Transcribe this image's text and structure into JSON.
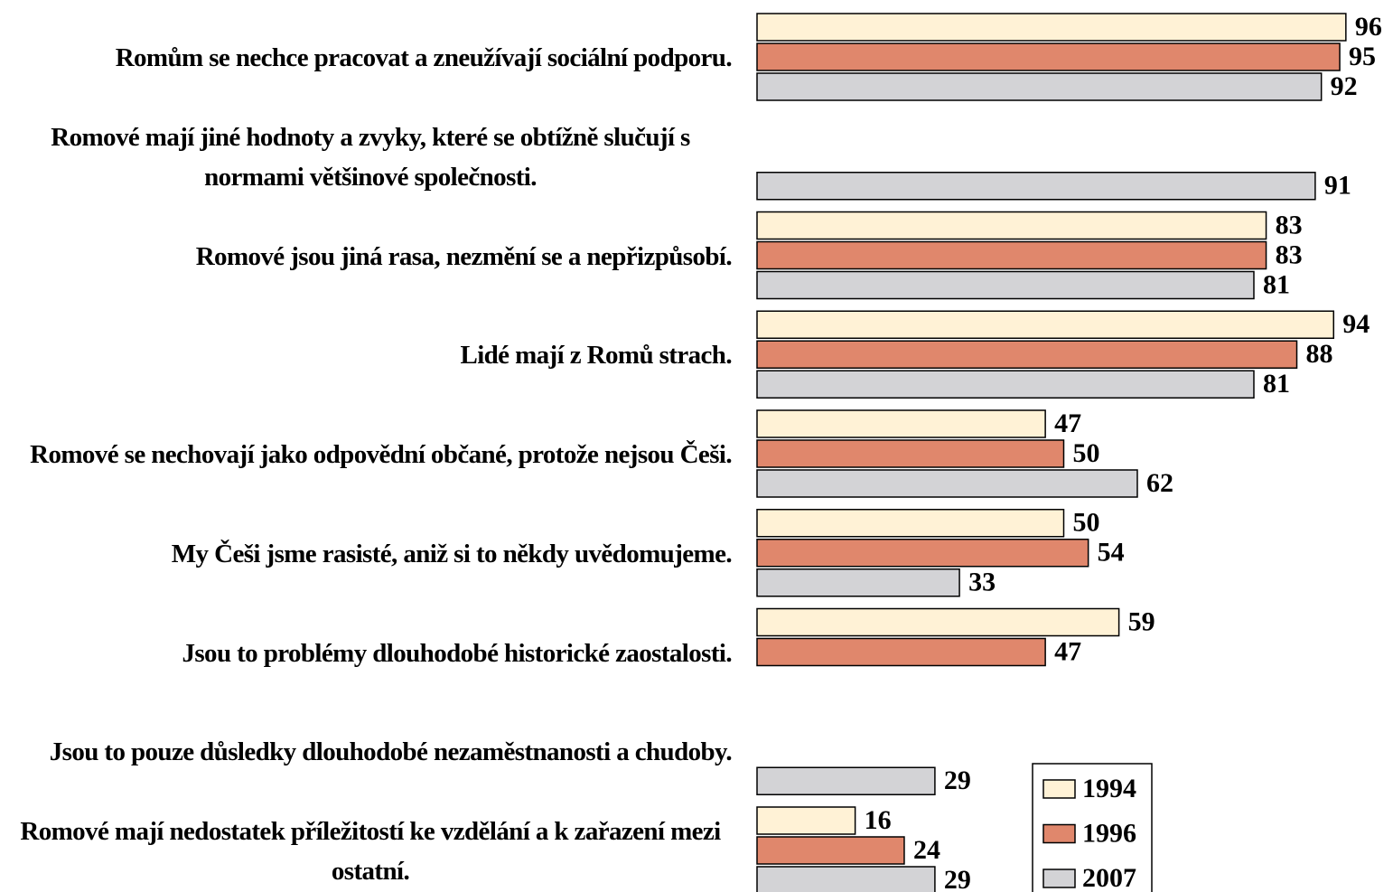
{
  "chart_data": {
    "type": "barh",
    "categories": [
      "Romům se nechce pracovat a zneužívají sociální podporu.",
      "Romové mají jiné hodnoty a zvyky, které se obtížně slučují s normami většinové společnosti.",
      "Romové jsou jiná rasa, nezmění se a nepřizpůsobí.",
      "Lidé mají z Romů strach.",
      "Romové se nechovají jako odpovědní občané, protože nejsou Češi.",
      "My Češi jsme rasisté, aniž si to někdy uvědomujeme.",
      "Jsou to problémy dlouhodobé historické zaostalosti.",
      "Jsou to pouze důsledky dlouhodobé nezaměstnanosti a chudoby.",
      "Romové mají nedostatek příležitostí ke vzdělání a k zařazení mezi ostatní."
    ],
    "series": [
      {
        "name": "1994",
        "color": "#fff2d6",
        "values": [
          96,
          null,
          83,
          94,
          47,
          50,
          59,
          null,
          16
        ]
      },
      {
        "name": "1996",
        "color": "#e0876c",
        "values": [
          95,
          null,
          83,
          88,
          50,
          54,
          47,
          null,
          24
        ]
      },
      {
        "name": "2007",
        "color": "#d3d3d6",
        "values": [
          92,
          91,
          81,
          81,
          62,
          33,
          null,
          29,
          29
        ]
      }
    ],
    "xlim": [
      0,
      100
    ],
    "legend": "lower right"
  }
}
